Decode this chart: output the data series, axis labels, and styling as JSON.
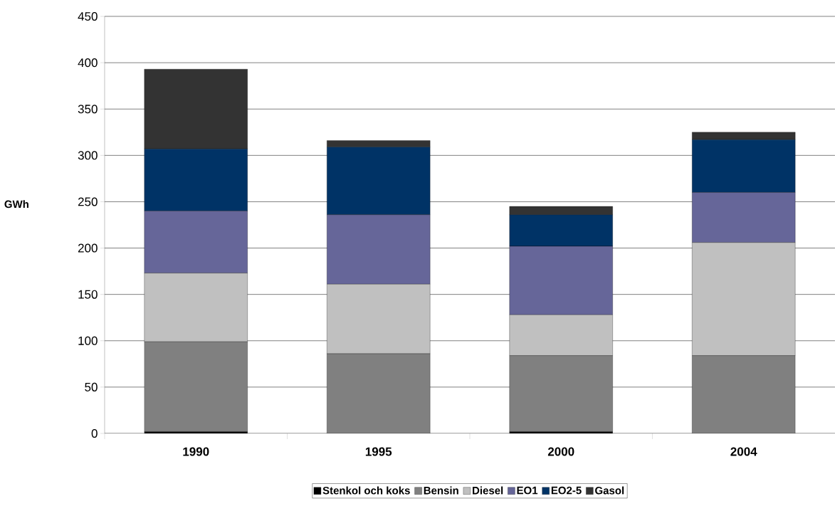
{
  "chart_data": {
    "type": "bar",
    "stacked": true,
    "ylabel": "GWh",
    "categories": [
      "1990",
      "1995",
      "2000",
      "2004"
    ],
    "series": [
      {
        "name": "Stenkol och koks",
        "color": "#000000",
        "values": [
          2,
          0,
          2,
          0
        ]
      },
      {
        "name": "Bensin",
        "color": "#808080",
        "values": [
          97,
          86,
          82,
          84
        ]
      },
      {
        "name": "Diesel",
        "color": "#c0c0c0",
        "values": [
          74,
          75,
          44,
          122
        ]
      },
      {
        "name": "EO1",
        "color": "#666699",
        "values": [
          67,
          75,
          74,
          54
        ]
      },
      {
        "name": "EO2-5",
        "color": "#003366",
        "values": [
          67,
          73,
          34,
          57
        ]
      },
      {
        "name": "Gasol",
        "color": "#333333",
        "values": [
          86,
          7,
          9,
          8
        ]
      }
    ],
    "ylim": [
      0,
      450
    ],
    "yticks": [
      0,
      50,
      100,
      150,
      200,
      250,
      300,
      350,
      400,
      450
    ],
    "grid": "y",
    "legend": "bottom"
  }
}
